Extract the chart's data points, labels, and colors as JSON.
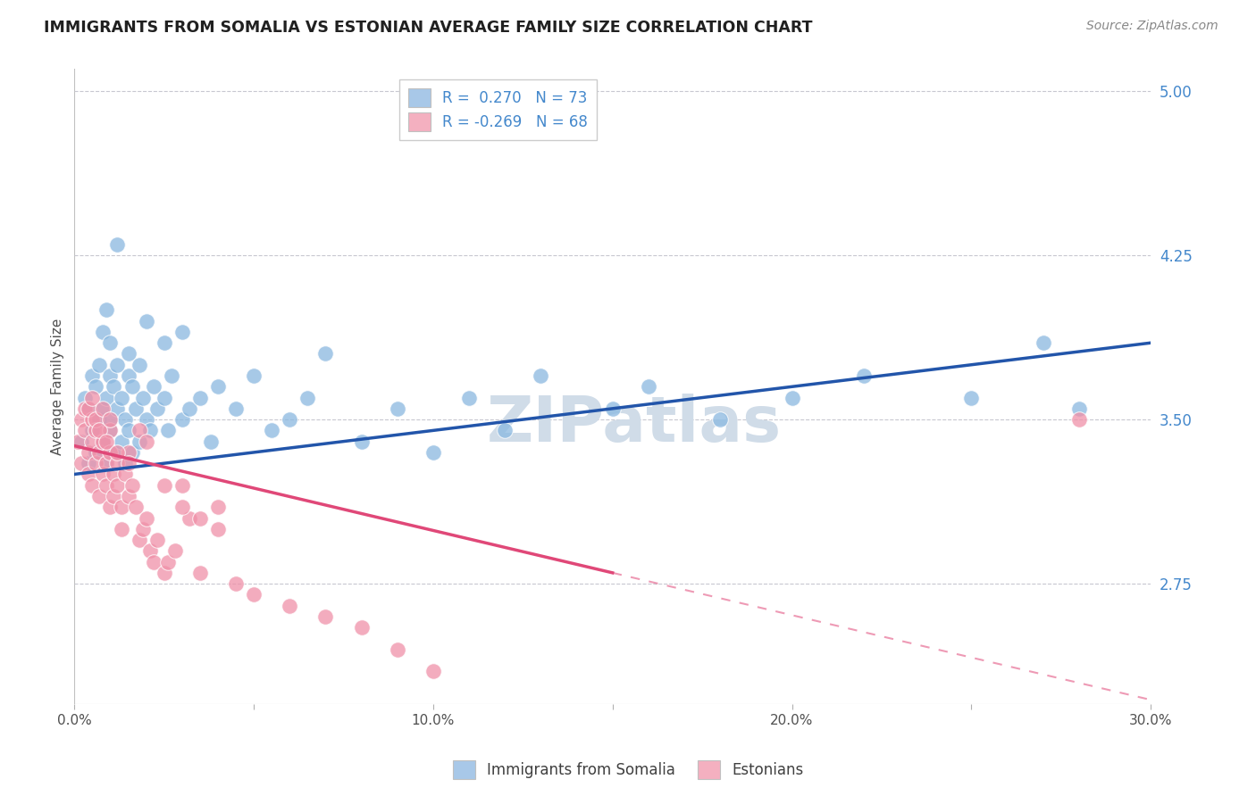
{
  "title": "IMMIGRANTS FROM SOMALIA VS ESTONIAN AVERAGE FAMILY SIZE CORRELATION CHART",
  "source": "Source: ZipAtlas.com",
  "ylabel": "Average Family Size",
  "xlim": [
    0.0,
    0.3
  ],
  "ylim": [
    2.2,
    5.1
  ],
  "right_yticks": [
    2.75,
    3.5,
    4.25,
    5.0
  ],
  "xtick_labels": [
    "0.0%",
    "",
    "10.0%",
    "",
    "20.0%",
    "",
    "30.0%"
  ],
  "xtick_positions": [
    0.0,
    0.05,
    0.1,
    0.15,
    0.2,
    0.25,
    0.3
  ],
  "legend_entries": [
    {
      "color": "#a8c8e8",
      "label": "Immigrants from Somalia",
      "R": "0.270",
      "N": "73"
    },
    {
      "color": "#f4b0c0",
      "label": "Estonians",
      "R": "-0.269",
      "N": "68"
    }
  ],
  "blue_scatter_color": "#8ab8e0",
  "pink_scatter_color": "#f090a8",
  "blue_line_color": "#2255aa",
  "pink_line_color": "#e04878",
  "watermark_text": "ZIPatlas",
  "watermark_color": "#d0dce8",
  "grid_color": "#c8c8d0",
  "background_color": "#ffffff",
  "title_color": "#202020",
  "right_axis_color": "#4488cc",
  "blue_scatter_x": [
    0.002,
    0.003,
    0.004,
    0.004,
    0.005,
    0.005,
    0.006,
    0.006,
    0.007,
    0.007,
    0.008,
    0.008,
    0.009,
    0.009,
    0.01,
    0.01,
    0.01,
    0.011,
    0.011,
    0.012,
    0.012,
    0.013,
    0.013,
    0.014,
    0.014,
    0.015,
    0.015,
    0.016,
    0.016,
    0.017,
    0.018,
    0.019,
    0.02,
    0.021,
    0.022,
    0.023,
    0.025,
    0.026,
    0.027,
    0.03,
    0.032,
    0.035,
    0.038,
    0.04,
    0.045,
    0.05,
    0.055,
    0.06,
    0.065,
    0.07,
    0.08,
    0.09,
    0.1,
    0.11,
    0.12,
    0.13,
    0.15,
    0.16,
    0.18,
    0.2,
    0.22,
    0.25,
    0.27,
    0.008,
    0.009,
    0.01,
    0.012,
    0.015,
    0.018,
    0.02,
    0.025,
    0.03,
    0.28
  ],
  "blue_scatter_y": [
    3.4,
    3.6,
    3.3,
    3.55,
    3.45,
    3.7,
    3.35,
    3.65,
    3.5,
    3.75,
    3.4,
    3.55,
    3.3,
    3.6,
    3.45,
    3.7,
    3.5,
    3.65,
    3.35,
    3.55,
    3.75,
    3.4,
    3.6,
    3.3,
    3.5,
    3.45,
    3.7,
    3.35,
    3.65,
    3.55,
    3.4,
    3.6,
    3.5,
    3.45,
    3.65,
    3.55,
    3.6,
    3.45,
    3.7,
    3.5,
    3.55,
    3.6,
    3.4,
    3.65,
    3.55,
    3.7,
    3.45,
    3.5,
    3.6,
    3.8,
    3.4,
    3.55,
    3.35,
    3.6,
    3.45,
    3.7,
    3.55,
    3.65,
    3.5,
    3.6,
    3.7,
    3.6,
    3.85,
    3.9,
    4.0,
    3.85,
    4.3,
    3.8,
    3.75,
    3.95,
    3.85,
    3.9,
    3.55
  ],
  "pink_scatter_x": [
    0.001,
    0.002,
    0.002,
    0.003,
    0.003,
    0.004,
    0.004,
    0.005,
    0.005,
    0.005,
    0.006,
    0.006,
    0.007,
    0.007,
    0.008,
    0.008,
    0.009,
    0.009,
    0.01,
    0.01,
    0.01,
    0.011,
    0.011,
    0.012,
    0.012,
    0.013,
    0.013,
    0.014,
    0.015,
    0.015,
    0.016,
    0.017,
    0.018,
    0.019,
    0.02,
    0.021,
    0.022,
    0.023,
    0.025,
    0.026,
    0.028,
    0.03,
    0.032,
    0.035,
    0.04,
    0.045,
    0.05,
    0.06,
    0.07,
    0.08,
    0.09,
    0.1,
    0.004,
    0.005,
    0.006,
    0.007,
    0.008,
    0.009,
    0.01,
    0.012,
    0.015,
    0.018,
    0.02,
    0.025,
    0.03,
    0.035,
    0.04,
    0.28
  ],
  "pink_scatter_y": [
    3.4,
    3.3,
    3.5,
    3.45,
    3.55,
    3.35,
    3.25,
    3.2,
    3.4,
    3.5,
    3.3,
    3.45,
    3.35,
    3.15,
    3.25,
    3.4,
    3.3,
    3.2,
    3.35,
    3.45,
    3.1,
    3.25,
    3.15,
    3.3,
    3.2,
    3.1,
    3.0,
    3.25,
    3.15,
    3.35,
    3.2,
    3.1,
    2.95,
    3.0,
    3.05,
    2.9,
    2.85,
    2.95,
    2.8,
    2.85,
    2.9,
    3.2,
    3.05,
    2.8,
    3.1,
    2.75,
    2.7,
    2.65,
    2.6,
    2.55,
    2.45,
    2.35,
    3.55,
    3.6,
    3.5,
    3.45,
    3.55,
    3.4,
    3.5,
    3.35,
    3.3,
    3.45,
    3.4,
    3.2,
    3.1,
    3.05,
    3.0,
    3.5
  ],
  "blue_line": {
    "x0": 0.0,
    "y0": 3.25,
    "x1": 0.3,
    "y1": 3.85
  },
  "pink_solid_line": {
    "x0": 0.0,
    "y0": 3.38,
    "x1": 0.15,
    "y1": 2.8
  },
  "pink_dashed_line": {
    "x0": 0.15,
    "y0": 2.8,
    "x1": 0.3,
    "y1": 2.22
  }
}
